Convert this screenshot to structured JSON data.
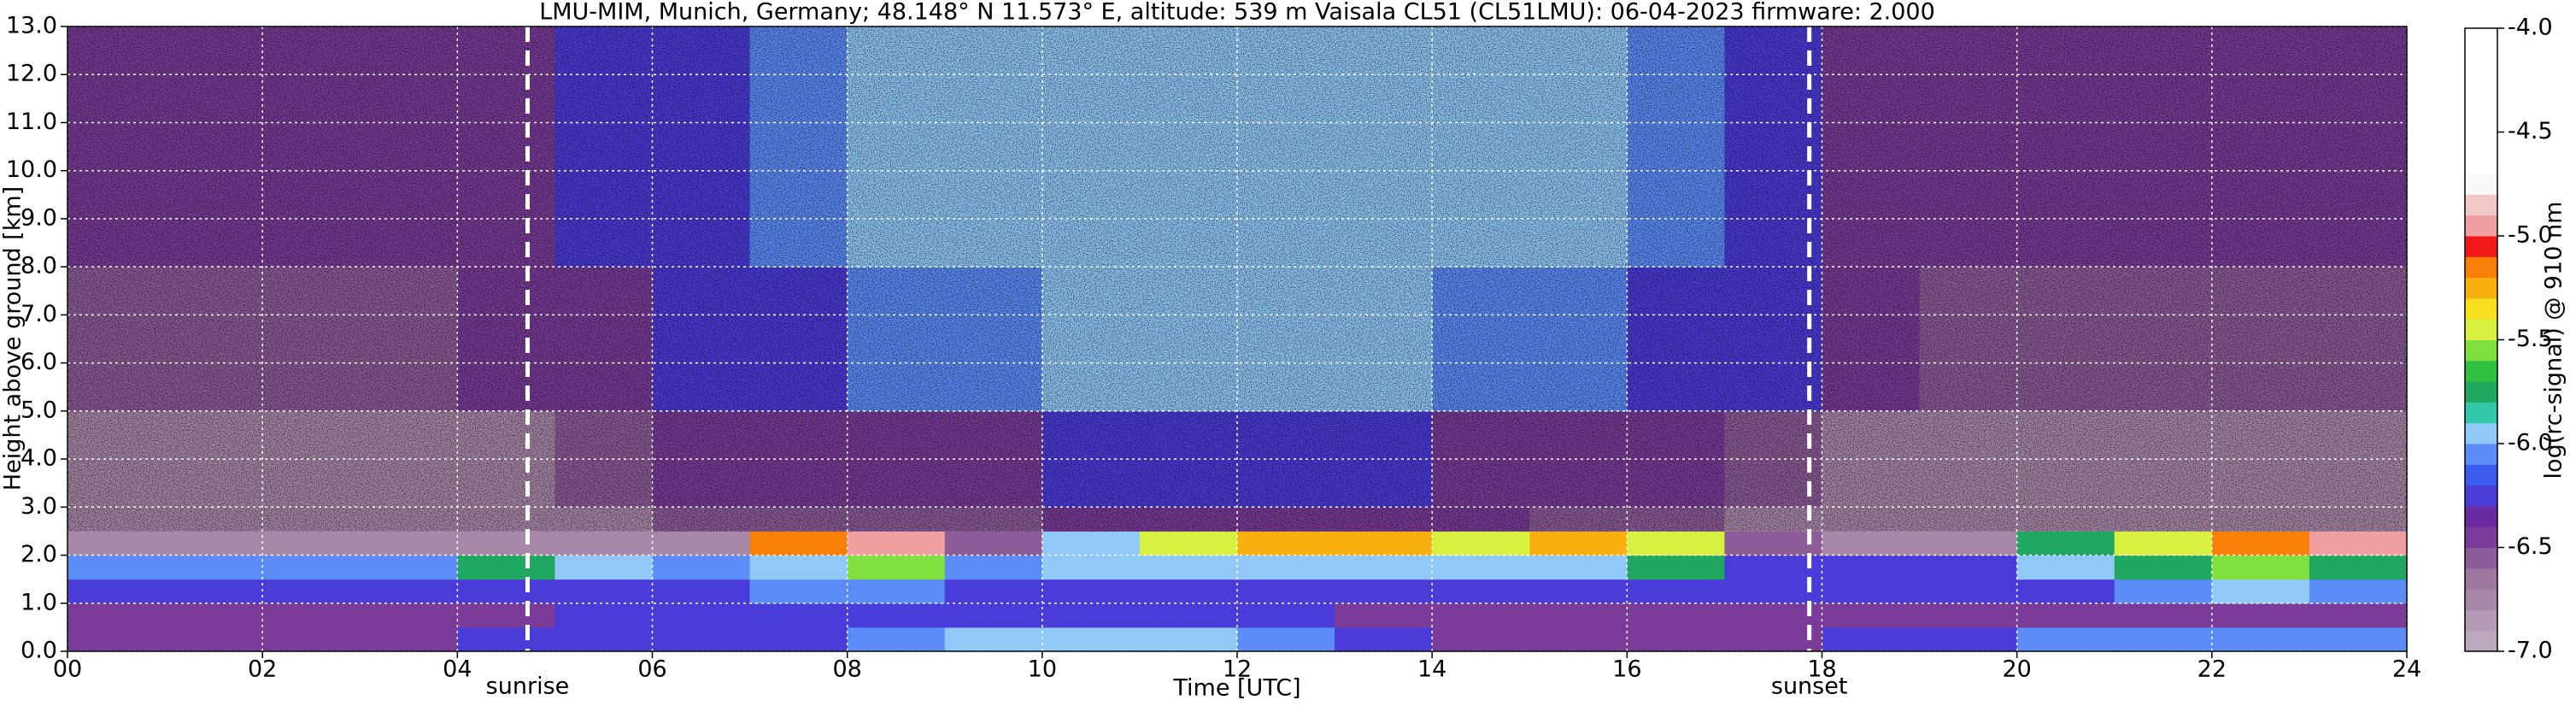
{
  "chart_data": {
    "type": "heatmap",
    "title": "LMU-MIM, Munich, Germany; 48.148° N 11.573° E, altitude: 539 m    Vaisala CL51 (CL51LMU): 06-04-2023    firmware: 2.000",
    "x_label": "Time [UTC]",
    "y_label": "Height above ground [km]",
    "xlim": [
      0,
      24
    ],
    "ylim": [
      0,
      13
    ],
    "xticks": [
      {
        "value": 0,
        "label": "00"
      },
      {
        "value": 2,
        "label": "02"
      },
      {
        "value": 4,
        "label": "04"
      },
      {
        "value": 6,
        "label": "06"
      },
      {
        "value": 8,
        "label": "08"
      },
      {
        "value": 10,
        "label": "10"
      },
      {
        "value": 12,
        "label": "12"
      },
      {
        "value": 14,
        "label": "14"
      },
      {
        "value": 16,
        "label": "16"
      },
      {
        "value": 18,
        "label": "18"
      },
      {
        "value": 20,
        "label": "20"
      },
      {
        "value": 22,
        "label": "22"
      },
      {
        "value": 24,
        "label": "24"
      }
    ],
    "yticks": [
      {
        "value": 0,
        "label": "0.0"
      },
      {
        "value": 1,
        "label": "1.0"
      },
      {
        "value": 2,
        "label": "2.0"
      },
      {
        "value": 3,
        "label": "3.0"
      },
      {
        "value": 4,
        "label": "4.0"
      },
      {
        "value": 5,
        "label": "5.0"
      },
      {
        "value": 6,
        "label": "6.0"
      },
      {
        "value": 7,
        "label": "7.0"
      },
      {
        "value": 8,
        "label": "8.0"
      },
      {
        "value": 9,
        "label": "9.0"
      },
      {
        "value": 10,
        "label": "10.0"
      },
      {
        "value": 11,
        "label": "11.0"
      },
      {
        "value": 12,
        "label": "12.0"
      },
      {
        "value": 13,
        "label": "13.0"
      }
    ],
    "grid": true,
    "x_edges": [
      0,
      1,
      2,
      3,
      4,
      5,
      6,
      7,
      8,
      9,
      10,
      11,
      12,
      13,
      14,
      15,
      16,
      17,
      18,
      19,
      20,
      21,
      22,
      23,
      24
    ],
    "y_edges": [
      0,
      0.5,
      1,
      1.5,
      2,
      2.5,
      3,
      5,
      8,
      13
    ],
    "z": [
      [
        -6.4,
        -6.4,
        -6.4,
        -6.4,
        -6.3,
        -6.3,
        -6.2,
        -6.2,
        -6.1,
        -6.0,
        -6.0,
        -6.0,
        -6.1,
        -6.3,
        -6.4,
        -6.5,
        -6.5,
        -6.4,
        -6.2,
        -6.2,
        -6.1,
        -6.1,
        -6.1,
        -6.1
      ],
      [
        -6.5,
        -6.5,
        -6.5,
        -6.5,
        -6.4,
        -6.3,
        -6.3,
        -6.2,
        -6.2,
        -6.2,
        -6.2,
        -6.3,
        -6.3,
        -6.4,
        -6.5,
        -6.5,
        -6.5,
        -6.5,
        -6.5,
        -6.5,
        -6.5,
        -6.5,
        -6.4,
        -6.4
      ],
      [
        -6.2,
        -6.2,
        -6.2,
        -6.2,
        -6.2,
        -6.2,
        -6.2,
        -6.1,
        -6.1,
        -6.2,
        -6.2,
        -6.3,
        -6.3,
        -6.3,
        -6.3,
        -6.3,
        -6.3,
        -6.3,
        -6.2,
        -6.2,
        -6.2,
        -6.1,
        -6.0,
        -6.1
      ],
      [
        -6.1,
        -6.1,
        -6.1,
        -6.1,
        -5.7,
        -6.0,
        -6.1,
        -5.9,
        -5.6,
        -6.1,
        -6.0,
        -5.9,
        -5.9,
        -5.9,
        -5.9,
        -5.9,
        -5.8,
        -6.2,
        -6.3,
        -6.3,
        -5.9,
        -5.8,
        -5.6,
        -5.8
      ],
      [
        -6.8,
        -6.8,
        -6.8,
        -6.8,
        -6.8,
        -6.8,
        -6.7,
        -5.2,
        -5.0,
        -6.6,
        -5.9,
        -5.4,
        -5.3,
        -5.3,
        -5.4,
        -5.3,
        -5.4,
        -6.6,
        -6.7,
        -6.7,
        -5.8,
        -5.4,
        -5.2,
        -5.0
      ],
      [
        -6.8,
        -6.8,
        -6.8,
        -6.7,
        -6.7,
        -6.7,
        -6.6,
        -6.6,
        -6.6,
        -6.6,
        -6.5,
        -6.5,
        -6.5,
        -6.5,
        -6.5,
        -6.6,
        -6.6,
        -6.7,
        -6.8,
        -6.8,
        -6.8,
        -6.8,
        -6.7,
        -6.7
      ],
      [
        -6.8,
        -6.8,
        -6.8,
        -6.8,
        -6.7,
        -6.6,
        -6.5,
        -6.5,
        -6.4,
        -6.4,
        -6.3,
        -6.3,
        -6.3,
        -6.3,
        -6.4,
        -6.4,
        -6.5,
        -6.6,
        -6.8,
        -6.8,
        -6.8,
        -6.8,
        -6.8,
        -6.8
      ],
      [
        -6.6,
        -6.6,
        -6.6,
        -6.6,
        -6.5,
        -6.4,
        -6.3,
        -6.2,
        -6.1,
        -6.1,
        -6.0,
        -6.0,
        -6.0,
        -6.0,
        -6.1,
        -6.1,
        -6.2,
        -6.3,
        -6.5,
        -6.6,
        -6.6,
        -6.6,
        -6.6,
        -6.6
      ],
      [
        -6.5,
        -6.5,
        -6.5,
        -6.5,
        -6.4,
        -6.3,
        -6.2,
        -6.1,
        -6.0,
        -6.0,
        -5.9,
        -5.9,
        -5.9,
        -5.9,
        -6.0,
        -6.0,
        -6.1,
        -6.2,
        -6.4,
        -6.5,
        -6.5,
        -6.5,
        -6.5,
        -6.5
      ]
    ],
    "annotations": [
      {
        "text": "sunrise",
        "x": 4.72
      },
      {
        "text": "sunset",
        "x": 17.87
      }
    ],
    "colorbar": {
      "label": "log(rc-signal) @ 910 nm",
      "lim": [
        -7,
        -4
      ],
      "ticks": [
        {
          "value": -7,
          "label": "-7.0"
        },
        -6.5,
        {
          "value": -6,
          "label": "-6.0"
        },
        -5.5,
        {
          "value": -5,
          "label": "-5.0"
        },
        -4.5,
        {
          "value": -4,
          "label": "-4.0"
        }
      ],
      "colors": [
        "#bca8bc",
        "#b49ab4",
        "#a888a8",
        "#9c78a0",
        "#8c5c98",
        "#7a3c98",
        "#6a2aa0",
        "#4a3cd8",
        "#3c5cf0",
        "#5c8cf8",
        "#90c8f8",
        "#30c8a8",
        "#20a860",
        "#30c040",
        "#80e040",
        "#d8f040",
        "#f8e020",
        "#f8b010",
        "#f88008",
        "#f01818",
        "#f0a0a0",
        "#f0c8c8",
        "#f8f8f8",
        "#ffffff",
        "#ffffff",
        "#ffffff",
        "#ffffff",
        "#ffffff",
        "#ffffff",
        "#ffffff"
      ]
    }
  }
}
